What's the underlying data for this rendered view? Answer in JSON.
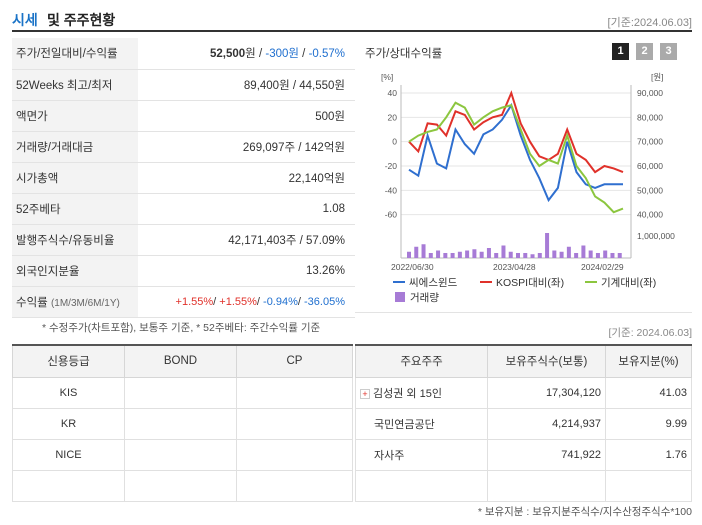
{
  "header": {
    "title_a": "시세",
    "title_b": "및 주주현황",
    "date": "[기준:2024.06.03]"
  },
  "summary": [
    {
      "key": "주가/전일대비/수익률",
      "v1": "52,500",
      "v1u": "원",
      "v2": "-300원",
      "v3": "-0.57%"
    },
    {
      "key": "52Weeks 최고/최저",
      "value": "89,400원 / 44,550원"
    },
    {
      "key": "액면가",
      "value": "500원"
    },
    {
      "key": "거래량/거래대금",
      "value": "269,097주 / 142억원"
    },
    {
      "key": "시가총액",
      "value": "22,140억원"
    },
    {
      "key": "52주베타",
      "value": "1.08"
    },
    {
      "key": "발행주식수/유동비율",
      "value": "42,171,403주 / 57.09%"
    },
    {
      "key": "외국인지분율",
      "value": "13.26%"
    },
    {
      "key": "수익률",
      "key_sub": "(1M/3M/6M/1Y)",
      "r1": "+1.55%",
      "r2": "+1.55%",
      "r3": "-0.94%",
      "r4": "-36.05%"
    }
  ],
  "note_left": "* 수정주가(차트포함), 보통주 기준, * 52주베타: 주간수익률 기준",
  "note_right": "[기준: 2024.06.03]",
  "chart": {
    "title": "주가/상대수익률",
    "pages": [
      "1",
      "2",
      "3"
    ],
    "colors": {
      "stock": "#2f6fcf",
      "kospi": "#e0312a",
      "machine": "#8cc63f",
      "volume": "#a77bd6"
    }
  },
  "chart_data": {
    "type": "line",
    "left_axis_unit": "[%]",
    "right_axis_unit": "[원]",
    "left_ticks": [
      "40",
      "20",
      "0",
      "-20",
      "-40",
      "-60"
    ],
    "right_ticks": [
      "90,000",
      "80,000",
      "70,000",
      "60,000",
      "50,000",
      "40,000"
    ],
    "volume_tick": "1,000,000",
    "x_labels": [
      "2022/06/30",
      "2023/04/28",
      "2024/02/29"
    ],
    "ylim": [
      -80,
      40
    ],
    "series": [
      {
        "name": "씨에스윈드",
        "values": [
          -23,
          -28,
          5,
          -18,
          -22,
          10,
          -2,
          -10,
          6,
          10,
          18,
          30,
          5,
          -15,
          -30,
          -48,
          -38,
          0,
          -25,
          -35,
          -38,
          -35,
          -35,
          -35
        ]
      },
      {
        "name": "KOSPI대비(좌)",
        "values": [
          0,
          -8,
          15,
          14,
          5,
          25,
          22,
          10,
          16,
          20,
          22,
          40,
          15,
          0,
          -12,
          -15,
          -10,
          10,
          -10,
          -15,
          -25,
          -20,
          -22,
          -25
        ]
      },
      {
        "name": "기계대비(좌)",
        "values": [
          0,
          5,
          8,
          10,
          20,
          32,
          28,
          14,
          20,
          25,
          28,
          30,
          10,
          -10,
          -20,
          -15,
          -18,
          5,
          -20,
          -30,
          -45,
          -50,
          -58,
          -55
        ]
      }
    ],
    "volume": [
      0.25,
      0.45,
      0.55,
      0.2,
      0.3,
      0.2,
      0.2,
      0.25,
      0.3,
      0.35,
      0.25,
      0.4,
      0.2,
      0.5,
      0.25,
      0.2,
      0.2,
      0.15,
      0.2,
      1.0,
      0.3,
      0.25,
      0.45,
      0.2,
      0.5,
      0.3,
      0.2,
      0.3,
      0.2,
      0.2
    ],
    "legend": [
      "씨에스윈드",
      "KOSPI대비(좌)",
      "기계대비(좌)",
      "거래량"
    ]
  },
  "credit": {
    "headers": [
      "신용등급",
      "BOND",
      "CP"
    ],
    "rows": [
      [
        "KIS",
        "",
        ""
      ],
      [
        "KR",
        "",
        ""
      ],
      [
        "NICE",
        "",
        ""
      ],
      [
        "",
        "",
        ""
      ]
    ]
  },
  "holders": {
    "headers": [
      "주요주주",
      "보유주식수(보통)",
      "보유지분(%)"
    ],
    "rows": [
      {
        "name": "김성권 외 15인",
        "shares": "17,304,120",
        "pct": "41.03",
        "expand": "+"
      },
      {
        "name": "국민연금공단",
        "shares": "4,214,937",
        "pct": "9.99"
      },
      {
        "name": "자사주",
        "shares": "741,922",
        "pct": "1.76"
      }
    ],
    "footnote": "* 보유지분 : 보유지분주식수/지수산정주식수*100"
  }
}
